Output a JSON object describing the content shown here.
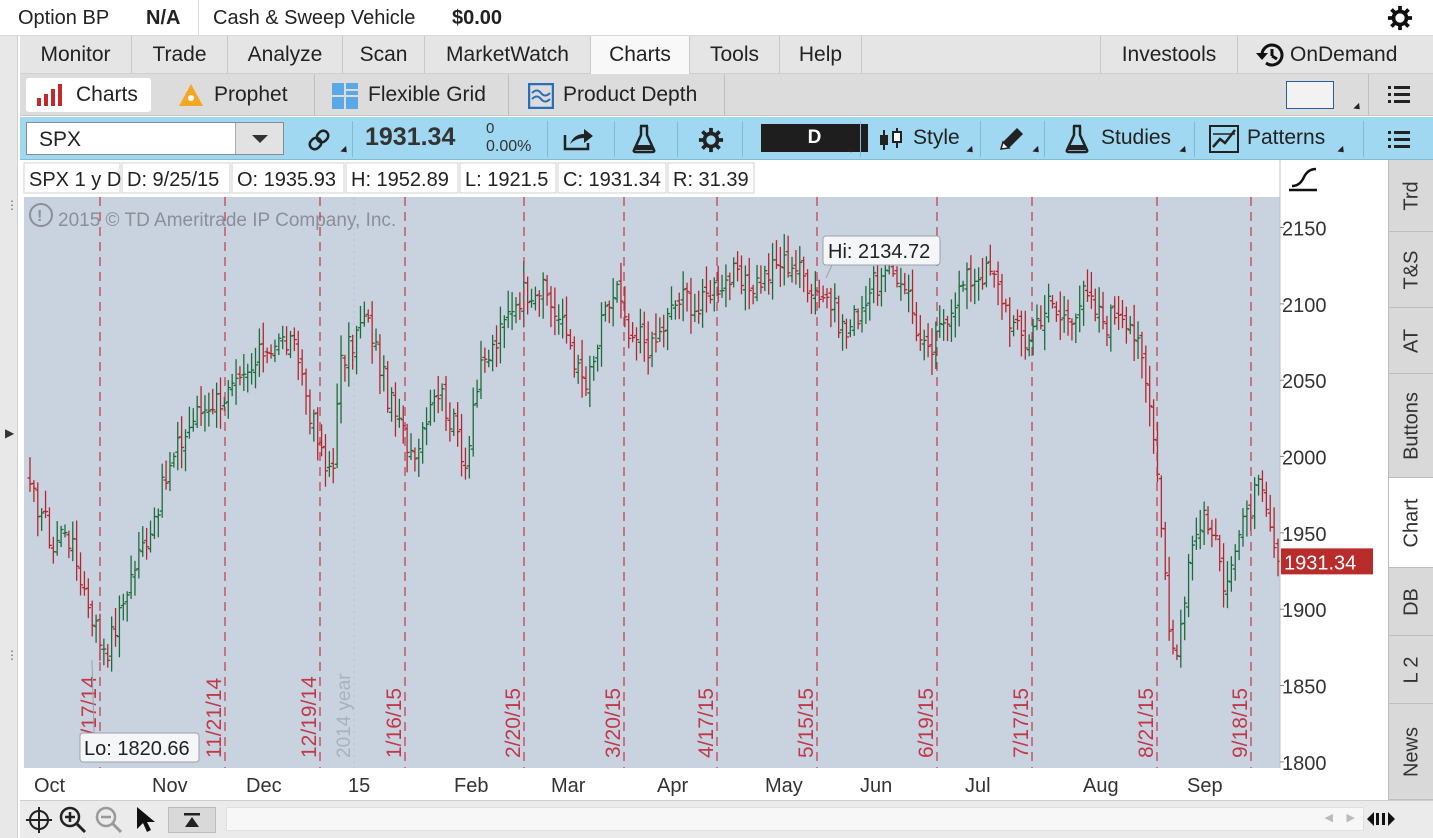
{
  "topbar": {
    "option_bp_label": "Option BP",
    "option_bp_value": "N/A",
    "sweep_label": "Cash & Sweep Vehicle",
    "sweep_value": "$0.00"
  },
  "main_nav": {
    "tabs": [
      {
        "label": "Monitor",
        "active": false
      },
      {
        "label": "Trade",
        "active": false
      },
      {
        "label": "Analyze",
        "active": false
      },
      {
        "label": "Scan",
        "active": false
      },
      {
        "label": "MarketWatch",
        "active": false
      },
      {
        "label": "Charts",
        "active": true
      },
      {
        "label": "Tools",
        "active": false
      },
      {
        "label": "Help",
        "active": false
      }
    ],
    "investools": "Investools",
    "ondemand": "OnDemand"
  },
  "sub_nav": {
    "tabs": [
      {
        "label": "Charts",
        "active": true
      },
      {
        "label": "Prophet",
        "active": false
      },
      {
        "label": "Flexible Grid",
        "active": false
      },
      {
        "label": "Product Depth",
        "active": false
      }
    ]
  },
  "toolbar": {
    "symbol": "SPX",
    "last_price": "1931.34",
    "net_change": "0",
    "pct_change": "0.00%",
    "period": "D",
    "style_label": "Style",
    "studies_label": "Studies",
    "patterns_label": "Patterns"
  },
  "chart_header": {
    "fields": [
      "SPX 1 y D",
      "D: 9/25/15",
      "O: 1935.93",
      "H: 1952.89",
      "L: 1921.5",
      "C: 1931.34",
      "R: 31.39"
    ]
  },
  "copyright": "2015 © TD Ameritrade IP Company, Inc.",
  "right_tabs": [
    {
      "label": "Trd",
      "active": false
    },
    {
      "label": "T&S",
      "active": false
    },
    {
      "label": "AT",
      "active": false
    },
    {
      "label": "Buttons",
      "active": false
    },
    {
      "label": "Chart",
      "active": true
    },
    {
      "label": "DB",
      "active": false
    },
    {
      "label": "L 2",
      "active": false
    },
    {
      "label": "News",
      "active": false
    }
  ],
  "colors": {
    "up_bar": "#1d6b3a",
    "down_bar": "#b3262e",
    "chart_bg": "#c9d3e0",
    "expiry_line": "#c0394a",
    "price_tag": "#b82c2c",
    "toolbar": "#9fd8f0"
  },
  "chart_data": {
    "type": "ohlc",
    "symbol": "SPX",
    "timeframe": "1 y D",
    "y_ticks": [
      1800,
      1850,
      1900,
      1950,
      2000,
      2050,
      2100,
      2150
    ],
    "ylim": [
      1796,
      2170
    ],
    "x_month_labels": [
      "Oct",
      "Nov",
      "Dec",
      "15",
      "Feb",
      "Mar",
      "Apr",
      "May",
      "Jun",
      "Jul",
      "Aug",
      "Sep"
    ],
    "year_marker": "2014 year",
    "expiration_dates": [
      "10/17/14",
      "11/21/14",
      "12/19/14",
      "1/16/15",
      "2/20/15",
      "3/20/15",
      "4/17/15",
      "5/15/15",
      "6/19/15",
      "7/17/15",
      "8/21/15",
      "9/18/15"
    ],
    "last_price": "1931.34",
    "annotations": {
      "high": "Hi: 2134.72",
      "low": "Lo: 1820.66"
    },
    "anchors": [
      [
        0,
        1975
      ],
      [
        3,
        1965
      ],
      [
        6,
        1940
      ],
      [
        9,
        1955
      ],
      [
        12,
        1930
      ],
      [
        15,
        1905
      ],
      [
        18,
        1880
      ],
      [
        20,
        1875
      ],
      [
        23,
        1895
      ],
      [
        25,
        1915
      ],
      [
        28,
        1935
      ],
      [
        31,
        1955
      ],
      [
        35,
        1985
      ],
      [
        38,
        2005
      ],
      [
        42,
        2025
      ],
      [
        46,
        2035
      ],
      [
        50,
        2040
      ],
      [
        54,
        2045
      ],
      [
        57,
        2055
      ],
      [
        60,
        2070
      ],
      [
        63,
        2075
      ],
      [
        66,
        2075
      ],
      [
        69,
        2065
      ],
      [
        72,
        2030
      ],
      [
        74,
        2010
      ],
      [
        76,
        1990
      ],
      [
        78,
        2000
      ],
      [
        80,
        2060
      ],
      [
        83,
        2075
      ],
      [
        86,
        2090
      ],
      [
        88,
        2080
      ],
      [
        90,
        2060
      ],
      [
        92,
        2040
      ],
      [
        95,
        2020
      ],
      [
        98,
        2005
      ],
      [
        100,
        2010
      ],
      [
        102,
        2030
      ],
      [
        104,
        2045
      ],
      [
        106,
        2040
      ],
      [
        108,
        2025
      ],
      [
        110,
        2015
      ],
      [
        112,
        1995
      ],
      [
        114,
        2035
      ],
      [
        116,
        2055
      ],
      [
        118,
        2065
      ],
      [
        121,
        2080
      ],
      [
        124,
        2100
      ],
      [
        127,
        2108
      ],
      [
        130,
        2112
      ],
      [
        133,
        2105
      ],
      [
        136,
        2090
      ],
      [
        139,
        2075
      ],
      [
        141,
        2055
      ],
      [
        143,
        2045
      ],
      [
        145,
        2060
      ],
      [
        147,
        2085
      ],
      [
        149,
        2100
      ],
      [
        151,
        2110
      ],
      [
        153,
        2085
      ],
      [
        155,
        2070
      ],
      [
        157,
        2080
      ],
      [
        160,
        2070
      ],
      [
        162,
        2080
      ],
      [
        164,
        2090
      ],
      [
        166,
        2100
      ],
      [
        169,
        2105
      ],
      [
        172,
        2095
      ],
      [
        175,
        2110
      ],
      [
        178,
        2115
      ],
      [
        181,
        2118
      ],
      [
        184,
        2110
      ],
      [
        187,
        2115
      ],
      [
        190,
        2120
      ],
      [
        193,
        2127
      ],
      [
        196,
        2127
      ],
      [
        199,
        2118
      ],
      [
        202,
        2110
      ],
      [
        205,
        2105
      ],
      [
        208,
        2090
      ],
      [
        210,
        2080
      ],
      [
        213,
        2095
      ],
      [
        216,
        2110
      ],
      [
        219,
        2115
      ],
      [
        222,
        2120
      ],
      [
        225,
        2115
      ],
      [
        227,
        2095
      ],
      [
        229,
        2075
      ],
      [
        231,
        2065
      ],
      [
        233,
        2075
      ],
      [
        235,
        2090
      ],
      [
        238,
        2105
      ],
      [
        241,
        2115
      ],
      [
        244,
        2120
      ],
      [
        247,
        2120
      ],
      [
        250,
        2105
      ],
      [
        253,
        2085
      ],
      [
        256,
        2075
      ],
      [
        259,
        2090
      ],
      [
        262,
        2100
      ],
      [
        265,
        2090
      ],
      [
        268,
        2095
      ],
      [
        271,
        2105
      ],
      [
        274,
        2095
      ],
      [
        277,
        2088
      ],
      [
        280,
        2098
      ],
      [
        283,
        2090
      ],
      [
        286,
        2060
      ],
      [
        289,
        2020
      ],
      [
        291,
        1960
      ],
      [
        293,
        1890
      ],
      [
        295,
        1870
      ],
      [
        298,
        1930
      ],
      [
        301,
        1960
      ],
      [
        304,
        1950
      ],
      [
        307,
        1920
      ],
      [
        310,
        1940
      ],
      [
        313,
        1960
      ],
      [
        316,
        1980
      ],
      [
        319,
        1950
      ],
      [
        321,
        1930
      ]
    ]
  }
}
